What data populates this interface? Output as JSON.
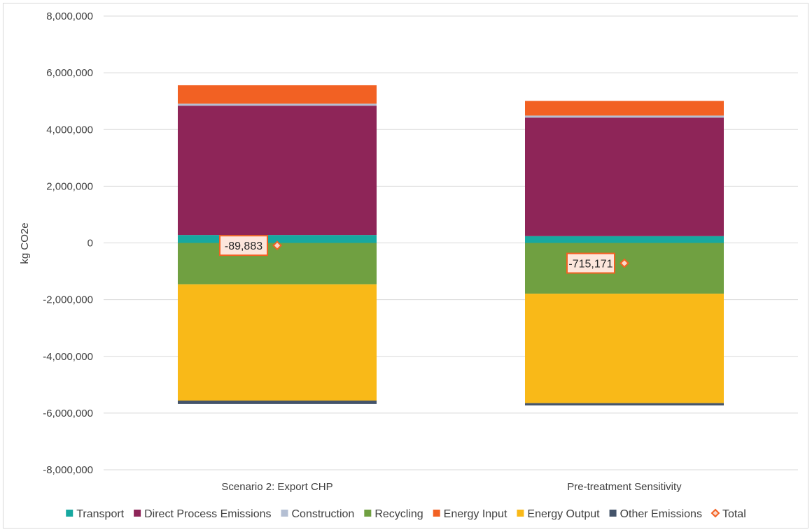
{
  "chart_data": {
    "type": "bar",
    "stacked": true,
    "title": "",
    "xlabel": "",
    "ylabel": "kg CO2e",
    "ylim": [
      -8000000,
      8000000
    ],
    "ytick_step": 2000000,
    "yticks": [
      "8,000,000",
      "6,000,000",
      "4,000,000",
      "2,000,000",
      "0",
      "-2,000,000",
      "-4,000,000",
      "-6,000,000",
      "-8,000,000"
    ],
    "grid": true,
    "legend_position": "bottom",
    "categories": [
      "Scenario 2: Export CHP",
      "Pre-treatment Sensitivity"
    ],
    "series": [
      {
        "name": "Transport",
        "color": "#17a8a0",
        "values": [
          280000,
          240000
        ]
      },
      {
        "name": "Direct Process Emissions",
        "color": "#8e2558",
        "values": [
          4560000,
          4180000
        ]
      },
      {
        "name": "Construction",
        "color": "#b4bfd3",
        "values": [
          70000,
          70000
        ]
      },
      {
        "name": "Recycling",
        "color": "#70a041",
        "values": [
          -1460000,
          -1790000
        ]
      },
      {
        "name": "Energy Input",
        "color": "#f26123",
        "values": [
          650000,
          520000
        ]
      },
      {
        "name": "Energy Output",
        "color": "#f9b918",
        "values": [
          -4100000,
          -3860000
        ]
      },
      {
        "name": "Other Emissions",
        "color": "#44546a",
        "values": [
          -120000,
          -80000
        ]
      }
    ],
    "total": {
      "name": "Total",
      "color": "#f26123",
      "values": [
        -89883,
        -715171
      ],
      "labels": [
        "-89,883",
        "-715,171"
      ]
    }
  }
}
